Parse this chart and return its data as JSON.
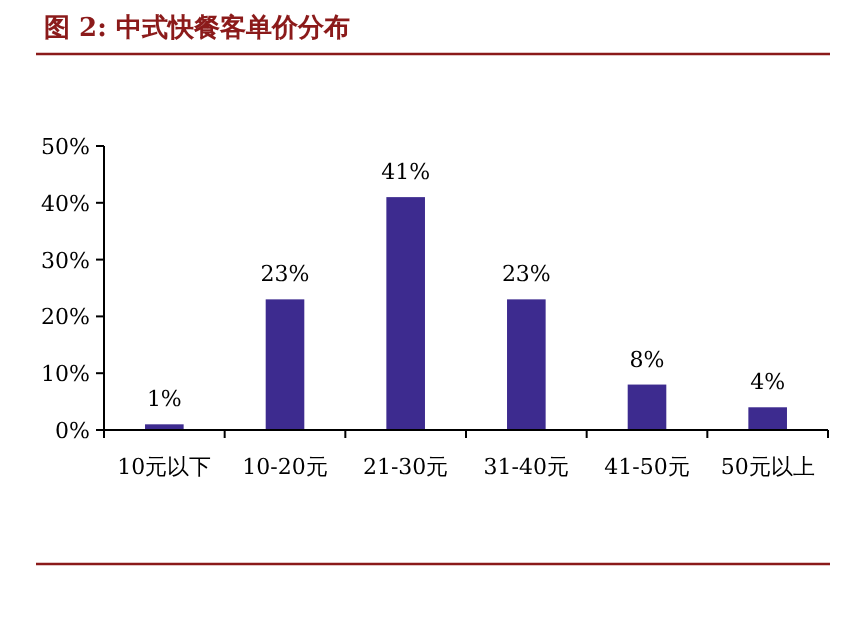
{
  "chart_data": {
    "type": "bar",
    "title": "图 2: 中式快餐客单价分布",
    "categories": [
      "10元以下",
      "10-20元",
      "21-30元",
      "31-40元",
      "41-50元",
      "50元以上"
    ],
    "values": [
      1,
      23,
      41,
      23,
      8,
      4
    ],
    "value_labels": [
      "1%",
      "23%",
      "41%",
      "23%",
      "8%",
      "4%"
    ],
    "color": "#3d2b8f",
    "ylim": [
      0,
      50
    ],
    "yticks": [
      {
        "value": 0,
        "label": "0%"
      },
      {
        "value": 10,
        "label": "10%"
      },
      {
        "value": 20,
        "label": "20%"
      },
      {
        "value": 30,
        "label": "30%"
      },
      {
        "value": 40,
        "label": "40%"
      },
      {
        "value": 50,
        "label": "50%"
      }
    ],
    "grid": false
  }
}
